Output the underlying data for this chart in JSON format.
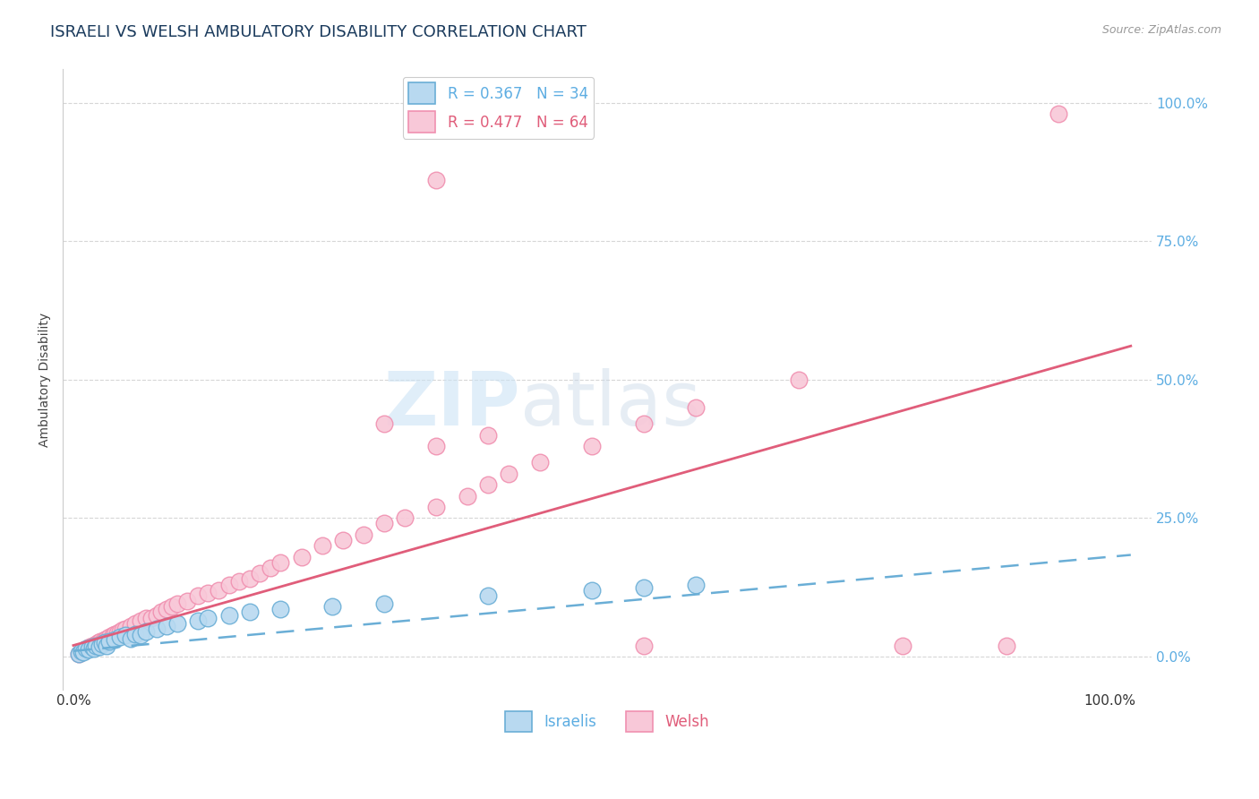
{
  "title": "ISRAELI VS WELSH AMBULATORY DISABILITY CORRELATION CHART",
  "source": "Source: ZipAtlas.com",
  "xlabel": "",
  "ylabel": "Ambulatory Disability",
  "watermark_zip": "ZIP",
  "watermark_atlas": "atlas",
  "legend_entries": [
    {
      "label": "R = 0.367   N = 34",
      "color": "#91c4f2",
      "series": "Israelis"
    },
    {
      "label": "R = 0.477   N = 64",
      "color": "#f48fb1",
      "series": "Welsh"
    }
  ],
  "x_ticks": [
    0.0,
    1.0
  ],
  "x_tick_labels": [
    "0.0%",
    "100.0%"
  ],
  "y_ticks": [
    0.0,
    0.25,
    0.5,
    0.75,
    1.0
  ],
  "y_tick_labels_right": [
    "0.0%",
    "25.0%",
    "50.0%",
    "75.0%",
    "100.0%"
  ],
  "ylim": [
    -0.06,
    1.06
  ],
  "xlim": [
    -0.01,
    1.04
  ],
  "israeli_points": [
    [
      0.005,
      0.005
    ],
    [
      0.008,
      0.01
    ],
    [
      0.01,
      0.008
    ],
    [
      0.012,
      0.015
    ],
    [
      0.015,
      0.012
    ],
    [
      0.018,
      0.018
    ],
    [
      0.02,
      0.015
    ],
    [
      0.022,
      0.02
    ],
    [
      0.025,
      0.018
    ],
    [
      0.028,
      0.022
    ],
    [
      0.03,
      0.025
    ],
    [
      0.032,
      0.02
    ],
    [
      0.035,
      0.028
    ],
    [
      0.04,
      0.03
    ],
    [
      0.045,
      0.035
    ],
    [
      0.05,
      0.038
    ],
    [
      0.055,
      0.032
    ],
    [
      0.06,
      0.04
    ],
    [
      0.065,
      0.038
    ],
    [
      0.07,
      0.045
    ],
    [
      0.08,
      0.05
    ],
    [
      0.09,
      0.055
    ],
    [
      0.1,
      0.06
    ],
    [
      0.12,
      0.065
    ],
    [
      0.13,
      0.07
    ],
    [
      0.15,
      0.075
    ],
    [
      0.17,
      0.08
    ],
    [
      0.2,
      0.085
    ],
    [
      0.25,
      0.09
    ],
    [
      0.3,
      0.095
    ],
    [
      0.4,
      0.11
    ],
    [
      0.5,
      0.12
    ],
    [
      0.55,
      0.125
    ],
    [
      0.6,
      0.13
    ]
  ],
  "welsh_points": [
    [
      0.005,
      0.005
    ],
    [
      0.008,
      0.008
    ],
    [
      0.01,
      0.01
    ],
    [
      0.012,
      0.012
    ],
    [
      0.014,
      0.015
    ],
    [
      0.016,
      0.018
    ],
    [
      0.018,
      0.02
    ],
    [
      0.02,
      0.018
    ],
    [
      0.022,
      0.022
    ],
    [
      0.024,
      0.025
    ],
    [
      0.026,
      0.028
    ],
    [
      0.028,
      0.025
    ],
    [
      0.03,
      0.03
    ],
    [
      0.032,
      0.032
    ],
    [
      0.035,
      0.035
    ],
    [
      0.038,
      0.038
    ],
    [
      0.04,
      0.04
    ],
    [
      0.042,
      0.042
    ],
    [
      0.045,
      0.045
    ],
    [
      0.048,
      0.048
    ],
    [
      0.05,
      0.05
    ],
    [
      0.055,
      0.055
    ],
    [
      0.06,
      0.06
    ],
    [
      0.065,
      0.065
    ],
    [
      0.07,
      0.07
    ],
    [
      0.075,
      0.07
    ],
    [
      0.08,
      0.075
    ],
    [
      0.085,
      0.08
    ],
    [
      0.09,
      0.085
    ],
    [
      0.095,
      0.09
    ],
    [
      0.1,
      0.095
    ],
    [
      0.11,
      0.1
    ],
    [
      0.12,
      0.11
    ],
    [
      0.13,
      0.115
    ],
    [
      0.14,
      0.12
    ],
    [
      0.15,
      0.13
    ],
    [
      0.16,
      0.135
    ],
    [
      0.17,
      0.14
    ],
    [
      0.18,
      0.15
    ],
    [
      0.19,
      0.16
    ],
    [
      0.2,
      0.17
    ],
    [
      0.22,
      0.18
    ],
    [
      0.24,
      0.2
    ],
    [
      0.26,
      0.21
    ],
    [
      0.28,
      0.22
    ],
    [
      0.3,
      0.24
    ],
    [
      0.32,
      0.25
    ],
    [
      0.35,
      0.27
    ],
    [
      0.38,
      0.29
    ],
    [
      0.4,
      0.31
    ],
    [
      0.42,
      0.33
    ],
    [
      0.45,
      0.35
    ],
    [
      0.5,
      0.38
    ],
    [
      0.55,
      0.42
    ],
    [
      0.6,
      0.45
    ],
    [
      0.7,
      0.5
    ],
    [
      0.3,
      0.42
    ],
    [
      0.35,
      0.38
    ],
    [
      0.4,
      0.4
    ],
    [
      0.35,
      0.86
    ],
    [
      0.95,
      0.98
    ],
    [
      0.8,
      0.02
    ],
    [
      0.9,
      0.02
    ],
    [
      0.55,
      0.02
    ]
  ],
  "israeli_line_color": "#6aaed6",
  "israeli_line_style": "--",
  "welsh_line_color": "#e05d7a",
  "welsh_line_style": "-",
  "isr_slope": 0.17,
  "isr_intercept": 0.01,
  "wel_slope": 0.53,
  "wel_intercept": 0.02,
  "dot_size_israeli": 180,
  "dot_size_welsh": 180,
  "israeli_dot_color": "#b8d9f0",
  "welsh_dot_color": "#f8c8d8",
  "israeli_dot_edge": "#6aaed6",
  "welsh_dot_edge": "#f090b0",
  "grid_color": "#cccccc",
  "grid_style": "--",
  "background_color": "#ffffff",
  "title_color": "#1a3a5c",
  "title_fontsize": 13,
  "axis_label_color": "#444444"
}
